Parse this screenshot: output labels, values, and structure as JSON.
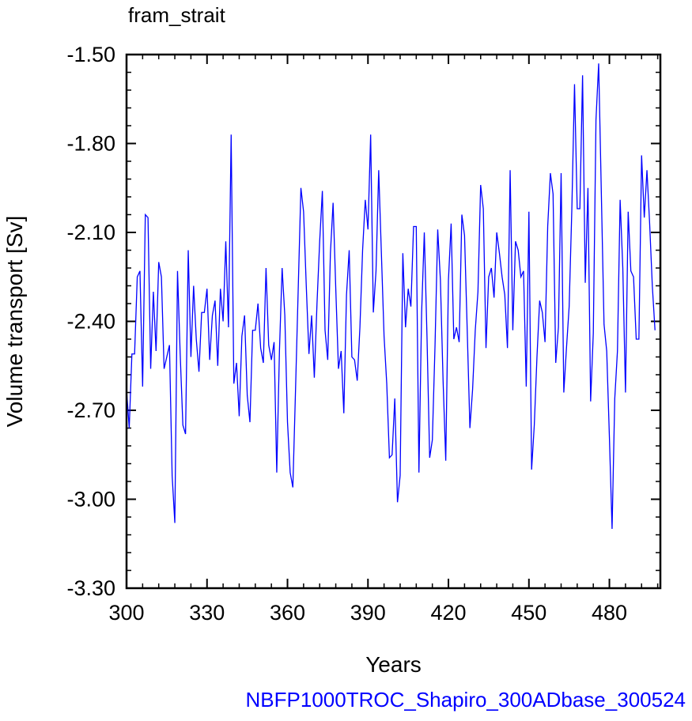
{
  "chart_data": {
    "type": "line",
    "title": "fram_strait",
    "xlabel": "Years",
    "ylabel": "Volume transport [Sv]",
    "caption": "NBFP1000TROC_Shapiro_300ADbase_300524",
    "xlim": [
      300,
      499
    ],
    "ylim": [
      -3.3,
      -1.5
    ],
    "x_ticks": [
      300,
      330,
      360,
      390,
      420,
      450,
      480
    ],
    "x_tick_labels": [
      "300",
      "330",
      "360",
      "390",
      "420",
      "450",
      "480"
    ],
    "y_ticks": [
      -1.5,
      -1.8,
      -2.1,
      -2.4,
      -2.7,
      -3.0,
      -3.3
    ],
    "y_tick_labels": [
      "-1.50",
      "-1.80",
      "-2.10",
      "-2.40",
      "-2.70",
      "-3.00",
      "-3.30"
    ],
    "x_start": 300,
    "x_step": 1,
    "line_color": "#0000ff",
    "series": [
      {
        "values": [
          -2.63,
          -2.76,
          -2.51,
          -2.51,
          -2.25,
          -2.23,
          -2.62,
          -2.04,
          -2.05,
          -2.56,
          -2.3,
          -2.5,
          -2.2,
          -2.25,
          -2.56,
          -2.52,
          -2.48,
          -2.92,
          -3.08,
          -2.23,
          -2.51,
          -2.75,
          -2.78,
          -2.16,
          -2.52,
          -2.28,
          -2.46,
          -2.57,
          -2.37,
          -2.37,
          -2.29,
          -2.53,
          -2.38,
          -2.33,
          -2.55,
          -2.29,
          -2.4,
          -2.13,
          -2.42,
          -1.77,
          -2.61,
          -2.54,
          -2.72,
          -2.45,
          -2.38,
          -2.65,
          -2.74,
          -2.43,
          -2.43,
          -2.34,
          -2.49,
          -2.54,
          -2.22,
          -2.48,
          -2.53,
          -2.47,
          -2.91,
          -2.5,
          -2.22,
          -2.38,
          -2.74,
          -2.91,
          -2.96,
          -2.63,
          -2.29,
          -1.95,
          -2.03,
          -2.28,
          -2.51,
          -2.38,
          -2.59,
          -2.34,
          -2.13,
          -1.96,
          -2.43,
          -2.53,
          -2.17,
          -2.0,
          -2.29,
          -2.56,
          -2.5,
          -2.71,
          -2.31,
          -2.16,
          -2.52,
          -2.53,
          -2.6,
          -2.42,
          -2.16,
          -1.99,
          -2.09,
          -1.77,
          -2.37,
          -2.23,
          -1.89,
          -2.17,
          -2.45,
          -2.61,
          -2.86,
          -2.85,
          -2.66,
          -3.01,
          -2.92,
          -2.17,
          -2.42,
          -2.29,
          -2.35,
          -2.08,
          -2.08,
          -2.91,
          -2.37,
          -2.1,
          -2.45,
          -2.86,
          -2.8,
          -2.48,
          -2.09,
          -2.26,
          -2.6,
          -2.87,
          -2.26,
          -2.07,
          -2.46,
          -2.42,
          -2.47,
          -2.04,
          -2.11,
          -2.43,
          -2.76,
          -2.63,
          -2.43,
          -2.3,
          -1.94,
          -2.02,
          -2.49,
          -2.25,
          -2.22,
          -2.32,
          -2.1,
          -2.17,
          -2.25,
          -2.31,
          -2.49,
          -1.89,
          -2.43,
          -2.13,
          -2.16,
          -2.25,
          -2.23,
          -2.62,
          -2.03,
          -2.9,
          -2.75,
          -2.52,
          -2.33,
          -2.37,
          -2.47,
          -2.08,
          -1.9,
          -1.97,
          -2.54,
          -2.42,
          -1.9,
          -2.64,
          -2.49,
          -2.35,
          -2.02,
          -1.6,
          -2.02,
          -2.02,
          -1.57,
          -2.27,
          -1.95,
          -2.67,
          -2.44,
          -1.72,
          -1.53,
          -1.97,
          -2.41,
          -2.5,
          -2.79,
          -3.1,
          -2.66,
          -2.5,
          -1.99,
          -2.22,
          -2.64,
          -2.03,
          -2.23,
          -2.25,
          -2.46,
          -2.46,
          -1.84,
          -2.05,
          -1.89,
          -2.07,
          -2.28,
          -2.43
        ]
      }
    ]
  }
}
